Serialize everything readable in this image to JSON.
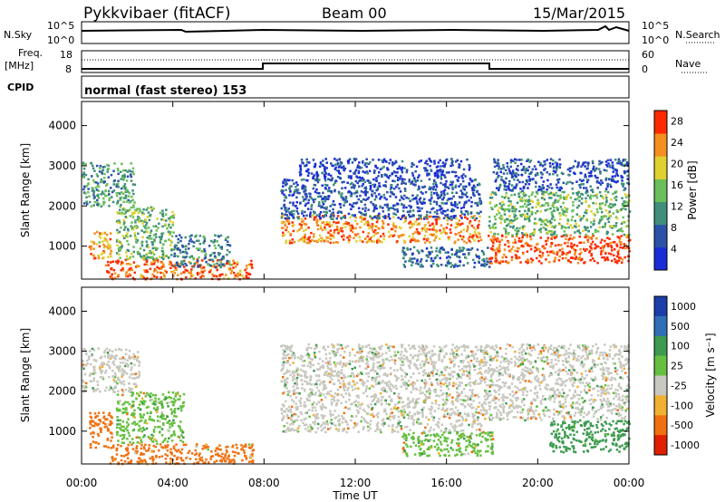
{
  "header": {
    "radar": "Pykkvibaer (fitACF)",
    "beam": "Beam 00",
    "date": "15/Mar/2015"
  },
  "strips": {
    "nsky": {
      "label": "N.Sky",
      "ticks": [
        "10^5",
        "10^0"
      ]
    },
    "nsearch": {
      "label": "N.Search",
      "ticks": [
        "10^5",
        "10^0"
      ]
    },
    "freq": {
      "label_line1": "Freq.",
      "label_line2": "[MHz]",
      "ticks": [
        "18",
        "8"
      ]
    },
    "nave": {
      "label": "Nave",
      "ticks": [
        "60",
        "0"
      ]
    },
    "cpid": {
      "label": "CPID",
      "text": "normal (fast stereo) 153"
    }
  },
  "panels": {
    "power": {
      "ylabel": "Slant Range [km]",
      "colorbar_label": "Power [dB]"
    },
    "velocity": {
      "ylabel": "Slant Range [km]",
      "colorbar_label": "Velocity [m s⁻¹]"
    }
  },
  "xaxis": {
    "label": "Time UT"
  },
  "chart_data": [
    {
      "type": "heatmap",
      "title": "Power",
      "x": [
        "00:00",
        "04:00",
        "08:00",
        "12:00",
        "16:00",
        "20:00",
        "00:00"
      ],
      "xlim_hours": [
        0,
        24
      ],
      "ylabel": "Slant Range [km]",
      "yticks": [
        1000,
        2000,
        3000,
        4000
      ],
      "ylim": [
        180,
        4600
      ],
      "colorbar": {
        "label": "Power [dB]",
        "ticks": [
          4,
          8,
          12,
          16,
          20,
          24,
          28
        ],
        "range": [
          0,
          30
        ],
        "colors": [
          "#1a2cd8",
          "#2b52a8",
          "#3f8f7a",
          "#6bbf5a",
          "#e0d030",
          "#f39020",
          "#ff2a00"
        ]
      },
      "bands": [
        {
          "t0": 0.0,
          "t1": 2.3,
          "r0": 2000,
          "r1": 3100,
          "level": 12
        },
        {
          "t0": 0.3,
          "t1": 1.3,
          "r0": 700,
          "r1": 1400,
          "level": 22
        },
        {
          "t0": 1.0,
          "t1": 7.5,
          "r0": 200,
          "r1": 700,
          "level": 26
        },
        {
          "t0": 1.5,
          "t1": 4.0,
          "r0": 700,
          "r1": 2000,
          "level": 14
        },
        {
          "t0": 4.0,
          "t1": 6.5,
          "r0": 500,
          "r1": 1300,
          "level": 10
        },
        {
          "t0": 8.7,
          "t1": 17.5,
          "r0": 1100,
          "r1": 1800,
          "level": 24
        },
        {
          "t0": 8.7,
          "t1": 17.5,
          "r0": 1700,
          "r1": 2700,
          "level": 6
        },
        {
          "t0": 9.5,
          "t1": 17.0,
          "r0": 2700,
          "r1": 3200,
          "level": 4
        },
        {
          "t0": 14.0,
          "t1": 18.0,
          "r0": 500,
          "r1": 1000,
          "level": 8
        },
        {
          "t0": 17.8,
          "t1": 24.0,
          "r0": 600,
          "r1": 1300,
          "level": 27
        },
        {
          "t0": 17.8,
          "t1": 24.0,
          "r0": 1300,
          "r1": 2400,
          "level": 14
        },
        {
          "t0": 18.0,
          "t1": 24.0,
          "r0": 2400,
          "r1": 3200,
          "level": 6
        }
      ]
    },
    {
      "type": "heatmap",
      "title": "Velocity",
      "x": [
        "00:00",
        "04:00",
        "08:00",
        "12:00",
        "16:00",
        "20:00",
        "00:00"
      ],
      "xlim_hours": [
        0,
        24
      ],
      "ylabel": "Slant Range [km]",
      "yticks": [
        1000,
        2000,
        3000,
        4000
      ],
      "ylim": [
        180,
        4600
      ],
      "colorbar": {
        "label": "Velocity [m s⁻¹]",
        "ticks": [
          1000,
          500,
          100,
          25,
          -25,
          -100,
          -500,
          -1000
        ],
        "colors": [
          "#1b3ea8",
          "#2f6fb8",
          "#3d9a50",
          "#66c040",
          "#c8c8c0",
          "#f0b030",
          "#f07010",
          "#e02000"
        ]
      },
      "bands": [
        {
          "t0": 0.0,
          "t1": 2.5,
          "r0": 2000,
          "r1": 3100,
          "level": 0
        },
        {
          "t0": 0.3,
          "t1": 1.3,
          "r0": 600,
          "r1": 1500,
          "level": -300
        },
        {
          "t0": 1.2,
          "t1": 7.5,
          "r0": 200,
          "r1": 700,
          "level": -150
        },
        {
          "t0": 1.5,
          "t1": 4.5,
          "r0": 700,
          "r1": 2000,
          "level": 50
        },
        {
          "t0": 8.7,
          "t1": 17.8,
          "r0": 1000,
          "r1": 3200,
          "level": 0
        },
        {
          "t0": 14.0,
          "t1": 18.0,
          "r0": 400,
          "r1": 1000,
          "level": 60
        },
        {
          "t0": 17.8,
          "t1": 24.0,
          "r0": 1300,
          "r1": 3200,
          "level": 0
        },
        {
          "t0": 20.5,
          "t1": 24.0,
          "r0": 500,
          "r1": 1300,
          "level": 200
        }
      ]
    }
  ]
}
